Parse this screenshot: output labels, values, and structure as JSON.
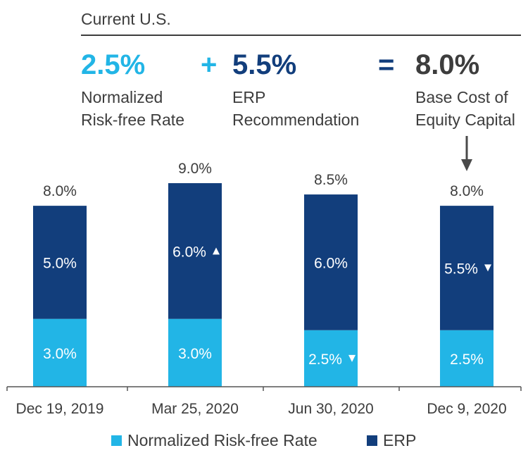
{
  "header": {
    "title": "Current U.S.",
    "rf_value": "2.5%",
    "plus": "+",
    "erp_value": "5.5%",
    "equals": "=",
    "coe_value": "8.0%",
    "rf_desc_line1": "Normalized",
    "rf_desc_line2": "Risk-free Rate",
    "erp_desc_line1": "ERP",
    "erp_desc_line2": "Recommendation",
    "coe_desc_line1": "Base Cost of",
    "coe_desc_line2": "Equity Capital"
  },
  "colors": {
    "light_blue": "#22b5e6",
    "dark_blue": "#123e7c",
    "text": "#3d3d3d",
    "arrow": "#4a4a4a"
  },
  "chart_data": {
    "type": "bar",
    "stacked": true,
    "categories": [
      "Dec 19, 2019",
      "Mar 25, 2020",
      "Jun 30, 2020",
      "Dec 9, 2020"
    ],
    "series": [
      {
        "name": "Normalized Risk-free Rate",
        "values": [
          3.0,
          3.0,
          2.5,
          2.5
        ],
        "labels": [
          "3.0%",
          "3.0%",
          "2.5%",
          "2.5%"
        ],
        "markers": [
          "",
          "",
          "down",
          ""
        ]
      },
      {
        "name": "ERP",
        "values": [
          5.0,
          6.0,
          6.0,
          5.5
        ],
        "labels": [
          "5.0%",
          "6.0%",
          "6.0%",
          "5.5%"
        ],
        "markers": [
          "",
          "up",
          "",
          "down"
        ]
      }
    ],
    "totals": [
      "8.0%",
      "9.0%",
      "8.5%",
      "8.0%"
    ],
    "ylim": [
      0,
      9.0
    ],
    "grid": false,
    "legend": "bottom"
  }
}
